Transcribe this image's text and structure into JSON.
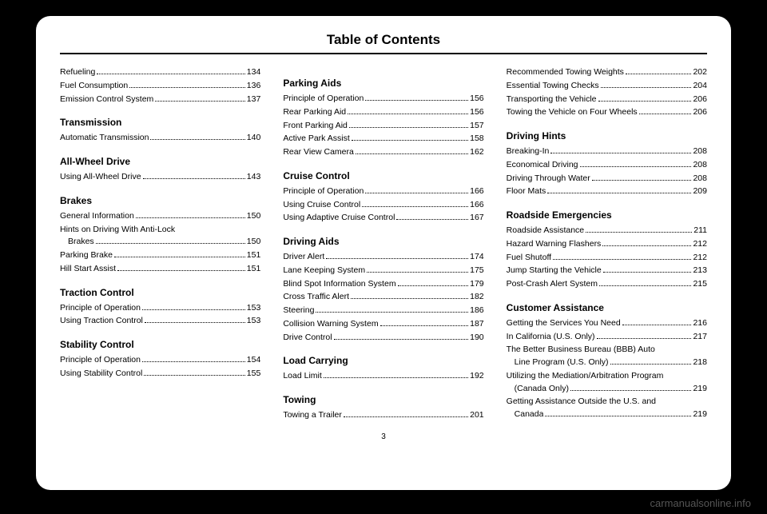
{
  "title": "Table of Contents",
  "pageNumber": "3",
  "watermark": "carmanualsonline.info",
  "columns": [
    [
      {
        "type": "entry",
        "label": "Refueling",
        "page": "134"
      },
      {
        "type": "entry",
        "label": "Fuel Consumption",
        "page": "136"
      },
      {
        "type": "entry",
        "label": "Emission Control System",
        "page": "137"
      },
      {
        "type": "heading",
        "label": "Transmission"
      },
      {
        "type": "entry",
        "label": "Automatic Transmission",
        "page": "140"
      },
      {
        "type": "heading",
        "label": "All-Wheel Drive"
      },
      {
        "type": "entry",
        "label": "Using All-Wheel Drive",
        "page": "143"
      },
      {
        "type": "heading",
        "label": "Brakes"
      },
      {
        "type": "entry",
        "label": "General Information",
        "page": "150"
      },
      {
        "type": "entry2",
        "line1": "Hints on Driving With Anti-Lock",
        "line2": "Brakes",
        "page": "150"
      },
      {
        "type": "entry",
        "label": "Parking Brake",
        "page": "151"
      },
      {
        "type": "entry",
        "label": "Hill Start Assist",
        "page": "151"
      },
      {
        "type": "heading",
        "label": "Traction Control"
      },
      {
        "type": "entry",
        "label": "Principle of Operation",
        "page": "153"
      },
      {
        "type": "entry",
        "label": "Using Traction Control",
        "page": "153"
      },
      {
        "type": "heading",
        "label": "Stability Control"
      },
      {
        "type": "entry",
        "label": "Principle of Operation",
        "page": "154"
      },
      {
        "type": "entry",
        "label": "Using Stability Control",
        "page": "155"
      }
    ],
    [
      {
        "type": "heading",
        "label": "Parking Aids"
      },
      {
        "type": "entry",
        "label": "Principle of Operation",
        "page": "156"
      },
      {
        "type": "entry",
        "label": "Rear Parking Aid",
        "page": "156"
      },
      {
        "type": "entry",
        "label": "Front Parking Aid",
        "page": "157"
      },
      {
        "type": "entry",
        "label": "Active Park Assist",
        "page": "158"
      },
      {
        "type": "entry",
        "label": "Rear View Camera",
        "page": "162"
      },
      {
        "type": "heading",
        "label": "Cruise Control"
      },
      {
        "type": "entry",
        "label": "Principle of Operation",
        "page": "166"
      },
      {
        "type": "entry",
        "label": "Using Cruise Control",
        "page": "166"
      },
      {
        "type": "entry",
        "label": "Using Adaptive Cruise Control",
        "page": "167"
      },
      {
        "type": "heading",
        "label": "Driving Aids"
      },
      {
        "type": "entry",
        "label": "Driver Alert",
        "page": "174"
      },
      {
        "type": "entry",
        "label": "Lane Keeping System",
        "page": "175"
      },
      {
        "type": "entry",
        "label": "Blind Spot Information System",
        "page": "179"
      },
      {
        "type": "entry",
        "label": "Cross Traffic Alert",
        "page": "182"
      },
      {
        "type": "entry",
        "label": "Steering",
        "page": "186"
      },
      {
        "type": "entry",
        "label": "Collision Warning System",
        "page": "187"
      },
      {
        "type": "entry",
        "label": "Drive Control",
        "page": "190"
      },
      {
        "type": "heading",
        "label": "Load Carrying"
      },
      {
        "type": "entry",
        "label": "Load Limit",
        "page": "192"
      },
      {
        "type": "heading",
        "label": "Towing"
      },
      {
        "type": "entry",
        "label": "Towing a Trailer",
        "page": "201"
      }
    ],
    [
      {
        "type": "entry",
        "label": "Recommended Towing Weights",
        "page": "202"
      },
      {
        "type": "entry",
        "label": "Essential Towing Checks",
        "page": "204"
      },
      {
        "type": "entry",
        "label": "Transporting the Vehicle",
        "page": "206"
      },
      {
        "type": "entry",
        "label": "Towing the Vehicle on Four Wheels",
        "page": "206"
      },
      {
        "type": "heading",
        "label": "Driving Hints"
      },
      {
        "type": "entry",
        "label": "Breaking-In",
        "page": "208"
      },
      {
        "type": "entry",
        "label": "Economical Driving",
        "page": "208"
      },
      {
        "type": "entry",
        "label": "Driving Through Water",
        "page": "208"
      },
      {
        "type": "entry",
        "label": "Floor Mats",
        "page": "209"
      },
      {
        "type": "heading",
        "label": "Roadside Emergencies"
      },
      {
        "type": "entry",
        "label": "Roadside Assistance",
        "page": "211"
      },
      {
        "type": "entry",
        "label": "Hazard Warning Flashers",
        "page": "212"
      },
      {
        "type": "entry",
        "label": "Fuel Shutoff",
        "page": "212"
      },
      {
        "type": "entry",
        "label": "Jump Starting the Vehicle",
        "page": "213"
      },
      {
        "type": "entry",
        "label": "Post-Crash Alert System",
        "page": "215"
      },
      {
        "type": "heading",
        "label": "Customer Assistance"
      },
      {
        "type": "entry",
        "label": "Getting the Services You Need",
        "page": "216"
      },
      {
        "type": "entry",
        "label": "In California (U.S. Only)",
        "page": "217"
      },
      {
        "type": "entry2",
        "line1": "The Better Business Bureau (BBB) Auto",
        "line2": "Line Program (U.S. Only)",
        "page": "218"
      },
      {
        "type": "entry2",
        "line1": "Utilizing the Mediation/Arbitration Program",
        "line2": "(Canada Only)",
        "page": "219"
      },
      {
        "type": "entry2",
        "line1": "Getting Assistance Outside the U.S. and",
        "line2": "Canada",
        "page": "219"
      }
    ]
  ]
}
